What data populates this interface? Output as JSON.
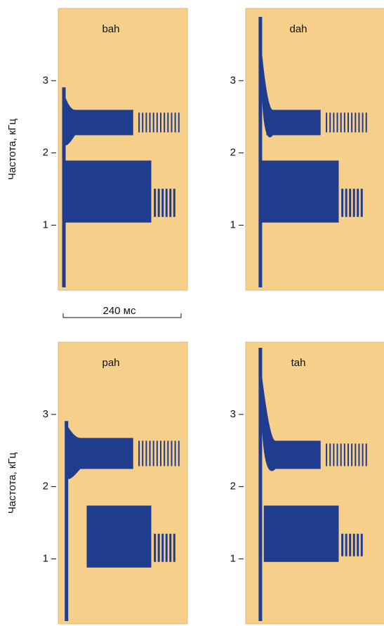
{
  "chart_data": [
    {
      "type": "spectrogram",
      "title": "bah",
      "ylabel": "Частота, кГц",
      "ylim": [
        0.1,
        4.0
      ],
      "yticks": [
        1,
        2,
        3
      ],
      "annotation": "240 мс"
    },
    {
      "type": "spectrogram",
      "title": "dah",
      "ylim": [
        0.1,
        4.0
      ],
      "yticks": [
        1,
        2,
        3
      ]
    },
    {
      "type": "spectrogram",
      "title": "pah",
      "ylabel": "Частота, кГц",
      "ylim": [
        0.1,
        4.0
      ],
      "yticks": [
        1,
        2,
        3
      ]
    },
    {
      "type": "spectrogram",
      "title": "tah",
      "ylim": [
        0.1,
        4.0
      ],
      "yticks": [
        1,
        2,
        3
      ]
    }
  ]
}
